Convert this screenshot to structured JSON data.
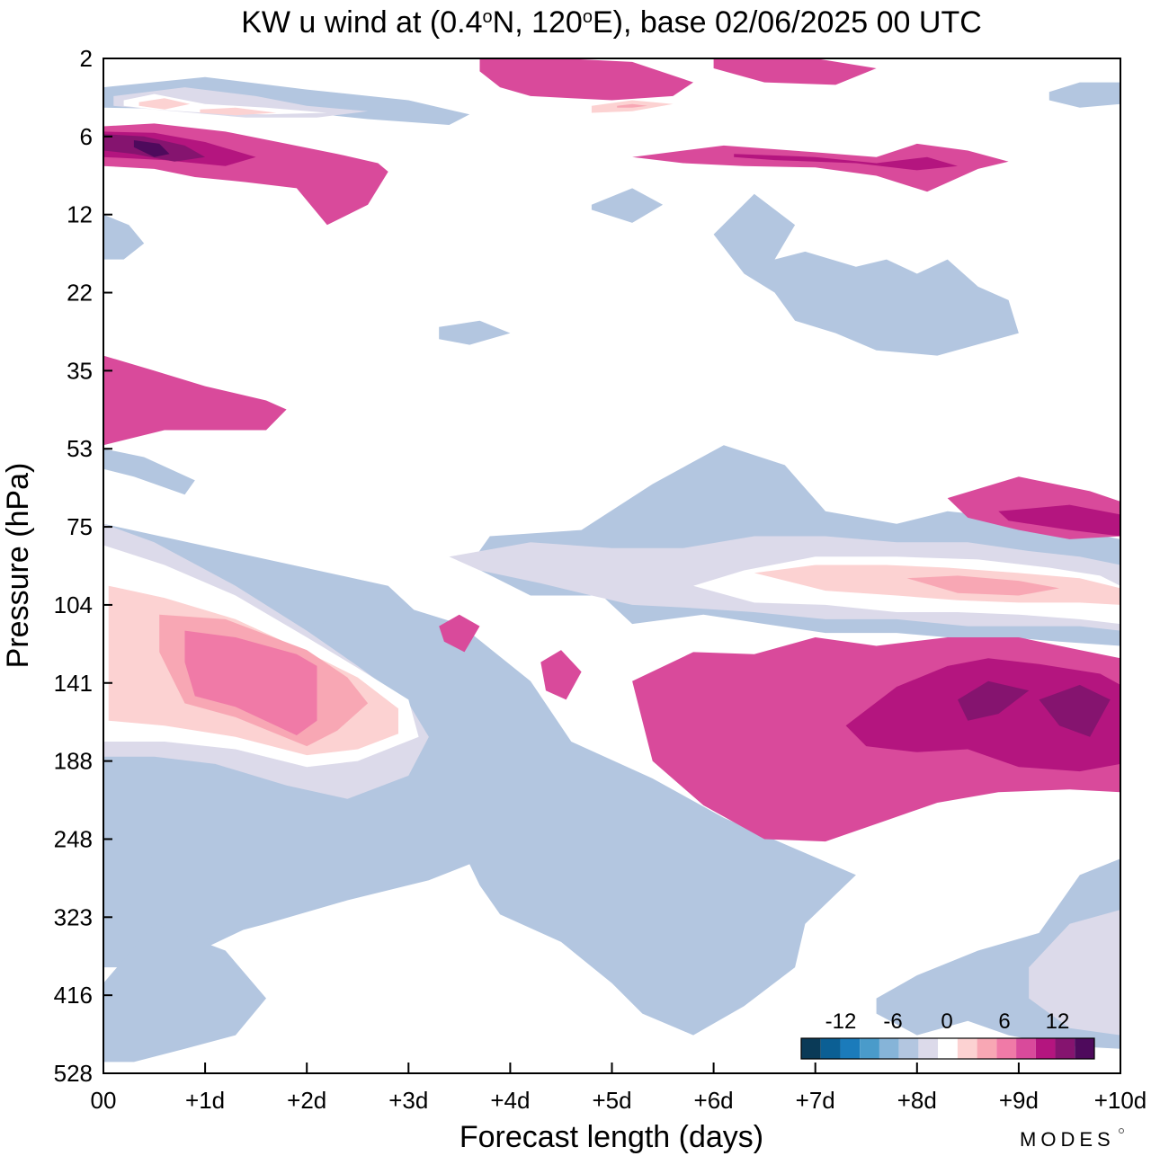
{
  "chart_data": {
    "type": "heatmap",
    "title_parts": [
      "KW u wind at (0.4",
      "o",
      "N, 120",
      "o",
      "E),  base 02/06/2025  00 UTC"
    ],
    "xlabel": "Forecast length (days)",
    "ylabel": "Pressure (hPa)",
    "x_ticks": [
      "00",
      "+1d",
      "+2d",
      "+3d",
      "+4d",
      "+5d",
      "+6d",
      "+7d",
      "+8d",
      "+9d",
      "+10d"
    ],
    "y_ticks": [
      "2",
      "6",
      "12",
      "22",
      "35",
      "53",
      "75",
      "104",
      "141",
      "188",
      "248",
      "323",
      "416",
      "528"
    ],
    "xlim": [
      0,
      10
    ],
    "colorbar": {
      "labels": [
        "-12",
        "-6",
        "0",
        "6",
        "12"
      ],
      "colors": [
        "#0a3a57",
        "#0b5f94",
        "#1b7bbb",
        "#4a9bca",
        "#86b4d8",
        "#b3c6e0",
        "#dcdaea",
        "#ffffff",
        "#fcd2d2",
        "#f8a7b4",
        "#f07aa7",
        "#d94a9b",
        "#b4157f",
        "#85146f",
        "#4e0a5c"
      ]
    },
    "regions": [
      {
        "level": -2,
        "x": [
          0,
          2.8,
          3.5,
          3.6,
          3.3,
          3.0,
          3.0,
          2.6,
          2.1,
          1.5,
          0.6,
          0
        ],
        "y": [
          74,
          96,
          125,
          152,
          178,
          210,
          265,
          280,
          300,
          330,
          380,
          380
        ]
      },
      {
        "level": -2,
        "x": [
          0,
          0.6,
          1.6,
          2.4,
          3.2,
          3.6,
          3.7,
          3.9,
          4.5,
          5.0,
          5.3,
          5.8,
          6.3,
          6.8,
          6.9,
          7.4,
          6.1,
          5.4,
          4.6,
          4.2,
          3.5,
          2.6,
          1.7,
          1.0,
          0.4,
          0
        ],
        "y": [
          380,
          360,
          330,
          305,
          285,
          270,
          290,
          320,
          350,
          400,
          440,
          470,
          430,
          380,
          330,
          280,
          230,
          200,
          175,
          140,
          112,
          100,
          125,
          170,
          280,
          380
        ]
      },
      {
        "level": -2,
        "x": [
          0,
          0.5,
          1.2,
          1.6,
          1.3,
          0.8,
          0.3,
          0
        ],
        "y": [
          400,
          330,
          360,
          420,
          470,
          490,
          510,
          510
        ]
      },
      {
        "level": -1,
        "x": [
          0,
          0.5,
          1.3,
          2.0,
          2.5,
          3.0,
          3.2,
          3.0,
          2.4,
          1.8,
          1.1,
          0.5,
          0
        ],
        "y": [
          74,
          80,
          96,
          115,
          132,
          152,
          172,
          198,
          215,
          205,
          190,
          185,
          185
        ]
      },
      {
        "level": 0,
        "x": [
          0,
          0.6,
          1.3,
          2.0,
          2.5,
          3.0,
          3.1,
          2.5,
          2.0,
          1.3,
          0.6,
          0
        ],
        "y": [
          81,
          88,
          100,
          118,
          133,
          150,
          172,
          188,
          192,
          180,
          175,
          175
        ]
      },
      {
        "level": 1,
        "x": [
          0.05,
          0.6,
          1.3,
          2.0,
          2.5,
          2.9,
          2.9,
          2.5,
          2.0,
          1.3,
          0.6,
          0.05
        ],
        "y": [
          96,
          101,
          110,
          125,
          138,
          155,
          170,
          180,
          184,
          172,
          165,
          162
        ]
      },
      {
        "level": 2,
        "x": [
          0.55,
          1.2,
          2.0,
          2.4,
          2.6,
          2.3,
          2.0,
          1.3,
          0.8,
          0.55
        ],
        "y": [
          108,
          110,
          124,
          138,
          152,
          168,
          178,
          160,
          152,
          125
        ]
      },
      {
        "level": 3,
        "x": [
          0.8,
          1.3,
          1.9,
          2.1,
          2.1,
          1.9,
          1.3,
          0.9,
          0.8
        ],
        "y": [
          115,
          118,
          126,
          132,
          162,
          171,
          154,
          148,
          130
        ]
      },
      {
        "level": -2,
        "x": [
          0,
          1.0,
          2.0,
          3.0,
          3.6,
          3.4,
          2.6,
          2.0,
          1.0,
          0
        ],
        "y": [
          3.0,
          2.6,
          3.1,
          3.6,
          4.4,
          5.1,
          4.7,
          4.3,
          4.1,
          4.0
        ]
      },
      {
        "level": -1,
        "x": [
          0.1,
          0.8,
          1.5,
          2.0,
          2.6,
          2.1,
          1.4,
          0.7,
          0.1
        ],
        "y": [
          3.4,
          3.0,
          3.4,
          3.9,
          4.2,
          4.6,
          4.6,
          4.2,
          3.9
        ]
      },
      {
        "level": 0,
        "x": [
          0.2,
          0.5,
          1.0,
          1.6,
          2.2,
          1.6,
          1.0,
          0.5,
          0.2
        ],
        "y": [
          3.6,
          3.3,
          3.8,
          4.0,
          4.3,
          4.4,
          4.3,
          4.1,
          3.9
        ]
      },
      {
        "level": 1,
        "x": [
          0.35,
          0.6,
          0.85,
          0.6,
          0.35
        ],
        "y": [
          3.7,
          3.5,
          3.8,
          4.1,
          3.9
        ]
      },
      {
        "level": 1,
        "x": [
          0.95,
          1.3,
          1.7,
          1.3,
          0.95
        ],
        "y": [
          4.1,
          4.0,
          4.3,
          4.45,
          4.3
        ]
      },
      {
        "level": -2,
        "x": [
          3.8,
          4.7,
          5.4,
          6.1,
          6.7,
          7.1,
          7.8,
          8.3,
          8.9,
          9.4,
          10.0,
          10.0,
          9.4,
          8.9,
          8.3,
          7.8,
          7.1,
          6.5,
          5.9,
          5.2,
          4.9,
          4.2,
          3.6,
          3.8
        ],
        "y": [
          78,
          76,
          62,
          52,
          57,
          70,
          74,
          70,
          72,
          75,
          79,
          122,
          120,
          118,
          118,
          116,
          116,
          112,
          108,
          112,
          100,
          100,
          88,
          78
        ]
      },
      {
        "level": -1,
        "x": [
          3.4,
          4.2,
          5.0,
          5.7,
          6.4,
          7.1,
          7.8,
          8.5,
          9.1,
          9.6,
          10.0,
          10.0,
          9.6,
          9.1,
          8.5,
          7.8,
          7.1,
          6.4,
          5.7,
          5.2,
          4.8,
          4.3,
          3.7,
          3.4
        ],
        "y": [
          85,
          80,
          82,
          82,
          78,
          78,
          80,
          80,
          83,
          85,
          88,
          115,
          113,
          113,
          113,
          110,
          110,
          107,
          105,
          104,
          100,
          95,
          90,
          85
        ]
      },
      {
        "level": 0,
        "x": [
          5.8,
          6.3,
          7.0,
          7.8,
          8.6,
          9.3,
          9.8,
          10.0,
          10.0,
          9.6,
          9.0,
          8.4,
          7.8,
          7.1,
          6.4,
          5.8
        ],
        "y": [
          96,
          90,
          85,
          85,
          86,
          89,
          92,
          96,
          112,
          110,
          108,
          107,
          107,
          104,
          103,
          96
        ]
      },
      {
        "level": 1,
        "x": [
          6.4,
          7.0,
          7.7,
          8.3,
          9.0,
          9.6,
          10.0,
          10.0,
          9.6,
          9.0,
          8.4,
          7.8,
          7.1,
          6.4
        ],
        "y": [
          91,
          88,
          88,
          89,
          91,
          93,
          97,
          104,
          103,
          103,
          102,
          100,
          98,
          91
        ]
      },
      {
        "level": 2,
        "x": [
          7.9,
          8.4,
          9.0,
          9.4,
          9.0,
          8.4,
          7.9
        ],
        "y": [
          93,
          92,
          94,
          97,
          100,
          99,
          93
        ]
      },
      {
        "level": 1,
        "x": [
          4.8,
          5.2,
          5.6,
          5.2,
          4.8
        ],
        "y": [
          3.9,
          3.6,
          3.8,
          4.2,
          4.3
        ]
      },
      {
        "level": 2,
        "x": [
          5.05,
          5.2,
          5.35,
          5.2,
          5.05
        ],
        "y": [
          3.9,
          3.8,
          3.9,
          4.0,
          4.0
        ]
      },
      {
        "level": -2,
        "x": [
          6.0,
          6.4,
          6.8,
          6.6,
          6.9,
          7.4,
          7.7,
          8.0,
          8.3,
          8.6,
          8.9,
          9.0,
          8.2,
          7.6,
          7.2,
          6.8,
          6.6,
          6.3,
          6.0
        ],
        "y": [
          14,
          10,
          13,
          17,
          16,
          18,
          17,
          19,
          17,
          21,
          23,
          28,
          32,
          31,
          28,
          26,
          22,
          19,
          14
        ]
      },
      {
        "level": 4,
        "x": [
          5.2,
          6.1,
          7.0,
          7.6,
          8.0,
          8.5,
          8.9,
          8.6,
          8.1,
          7.6,
          7.0,
          6.3,
          5.7,
          5.2
        ],
        "y": [
          7.2,
          6.5,
          6.9,
          7.2,
          6.4,
          6.8,
          7.5,
          8.0,
          9.8,
          8.5,
          7.9,
          7.8,
          7.6,
          7.2
        ]
      },
      {
        "level": 5,
        "x": [
          6.2,
          7.0,
          7.6,
          8.1,
          8.4,
          8.0,
          7.4,
          6.6,
          6.2
        ],
        "y": [
          7.0,
          7.2,
          7.6,
          7.2,
          7.8,
          8.1,
          7.6,
          7.4,
          7.2
        ]
      },
      {
        "level": 4,
        "x": [
          0,
          0.5,
          1.2,
          1.8,
          2.3,
          2.7,
          2.8,
          2.6,
          2.2,
          1.9,
          1.4,
          0.9,
          0.5,
          0
        ],
        "y": [
          5.2,
          5.0,
          5.6,
          6.4,
          7.0,
          7.6,
          8.2,
          11,
          13,
          9.5,
          9.0,
          8.6,
          8.0,
          7.8
        ]
      },
      {
        "level": 5,
        "x": [
          0,
          0.5,
          1.0,
          1.5,
          1.2,
          0.6,
          0
        ],
        "y": [
          5.6,
          5.7,
          6.3,
          7.2,
          7.8,
          7.4,
          7.2
        ]
      },
      {
        "level": 6,
        "x": [
          0,
          0.4,
          0.8,
          1.0,
          0.7,
          0.3,
          0
        ],
        "y": [
          5.8,
          6.0,
          6.5,
          7.2,
          7.5,
          7.0,
          6.8
        ]
      },
      {
        "level": 7,
        "x": [
          0.3,
          0.55,
          0.65,
          0.5,
          0.3
        ],
        "y": [
          6.2,
          6.4,
          7.0,
          7.2,
          6.6
        ]
      },
      {
        "level": 4,
        "x": [
          3.7,
          4.5,
          5.2,
          5.8,
          5.6,
          5.0,
          4.6,
          4.2,
          3.9,
          3.7
        ],
        "y": [
          2,
          2,
          2.1,
          2.8,
          3.4,
          3.6,
          3.5,
          3.4,
          3.0,
          2.4
        ]
      },
      {
        "level": 4,
        "x": [
          6.0,
          7.0,
          7.6,
          7.2,
          6.5,
          6.0
        ],
        "y": [
          2.0,
          2.0,
          2.3,
          2.9,
          2.8,
          2.3
        ]
      },
      {
        "level": 4,
        "x": [
          0,
          0.5,
          1.0,
          1.6,
          1.8,
          1.6,
          1.2,
          0.6,
          0
        ],
        "y": [
          32,
          35,
          38,
          41,
          43,
          48,
          48,
          48,
          52
        ]
      },
      {
        "level": 4,
        "x": [
          8.3,
          9.0,
          9.7,
          10.0,
          10.0,
          9.5,
          9.0,
          8.5,
          8.3
        ],
        "y": [
          66,
          60,
          64,
          67,
          78,
          79,
          76,
          72,
          66
        ]
      },
      {
        "level": 5,
        "x": [
          8.8,
          9.5,
          10.0,
          10.0,
          9.5,
          8.9
        ],
        "y": [
          70,
          68,
          71,
          78,
          76,
          73
        ]
      },
      {
        "level": 4,
        "x": [
          5.2,
          5.8,
          6.4,
          7.0,
          7.6,
          8.3,
          9.0,
          9.6,
          10.0,
          10.0,
          9.5,
          8.8,
          8.2,
          7.7,
          7.1,
          6.5,
          5.9,
          5.4,
          5.2
        ],
        "y": [
          140,
          125,
          126,
          118,
          122,
          118,
          118,
          124,
          128,
          210,
          208,
          210,
          218,
          232,
          250,
          248,
          220,
          188,
          140
        ]
      },
      {
        "level": 5,
        "x": [
          7.3,
          7.8,
          8.3,
          8.7,
          9.2,
          9.8,
          10.0,
          10.0,
          9.6,
          9.0,
          8.5,
          8.0,
          7.5,
          7.3
        ],
        "y": [
          165,
          143,
          132,
          128,
          131,
          136,
          142,
          190,
          195,
          192,
          180,
          182,
          178,
          165
        ]
      },
      {
        "level": 6,
        "x": [
          8.4,
          8.7,
          9.1,
          8.8,
          8.5,
          8.4
        ],
        "y": [
          150,
          140,
          145,
          158,
          162,
          150
        ]
      },
      {
        "level": 6,
        "x": [
          9.2,
          9.6,
          9.9,
          9.7,
          9.4,
          9.2
        ],
        "y": [
          150,
          142,
          150,
          172,
          165,
          150
        ]
      },
      {
        "level": 4,
        "x": [
          3.3,
          3.5,
          3.7,
          3.55,
          3.35,
          3.3
        ],
        "y": [
          113,
          108,
          113,
          125,
          120,
          113
        ]
      },
      {
        "level": 4,
        "x": [
          4.3,
          4.5,
          4.7,
          4.55,
          4.35,
          4.3
        ],
        "y": [
          130,
          124,
          135,
          150,
          145,
          130
        ]
      },
      {
        "level": -2,
        "x": [
          7.6,
          8.0,
          8.6,
          9.2,
          9.6,
          10.0,
          10.0,
          9.4,
          8.9,
          8.5,
          8.0,
          7.6,
          7.6
        ],
        "y": [
          420,
          390,
          360,
          340,
          280,
          265,
          490,
          485,
          470,
          450,
          470,
          440,
          420
        ]
      },
      {
        "level": -1,
        "x": [
          9.1,
          9.5,
          10.0,
          10.0,
          9.5,
          9.1
        ],
        "y": [
          380,
          330,
          315,
          470,
          460,
          420
        ]
      },
      {
        "level": -2,
        "x": [
          3.3,
          3.7,
          4.0,
          3.6,
          3.3
        ],
        "y": [
          27,
          26,
          28,
          30,
          29
        ]
      },
      {
        "level": -2,
        "x": [
          4.8,
          5.2,
          5.5,
          5.2,
          4.8
        ],
        "y": [
          11,
          9.5,
          11,
          12.8,
          11.5
        ]
      },
      {
        "level": -2,
        "x": [
          9.3,
          9.6,
          10.0,
          10.0,
          9.6,
          9.3
        ],
        "y": [
          3.2,
          2.8,
          2.8,
          3.8,
          4.0,
          3.6
        ]
      },
      {
        "level": -2,
        "x": [
          0,
          0.25,
          0.4,
          0.2,
          0
        ],
        "y": [
          12,
          13,
          15,
          17,
          17
        ]
      },
      {
        "level": -2,
        "x": [
          0,
          0.4,
          0.9,
          0.8,
          0.3,
          0
        ],
        "y": [
          53,
          55,
          61,
          65,
          60,
          58
        ]
      }
    ]
  },
  "branding": {
    "logo_text": "MODES"
  }
}
